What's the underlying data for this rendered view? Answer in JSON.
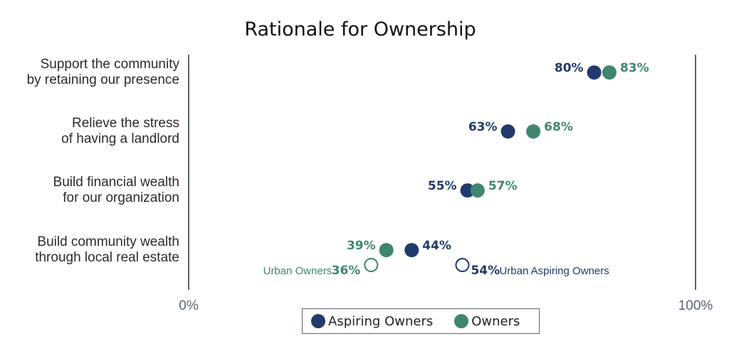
{
  "chart_data": {
    "type": "scatter",
    "title": "Rationale for Ownership",
    "xlim": [
      0,
      100
    ],
    "x_ticks": [
      "0%",
      "100%"
    ],
    "categories": [
      [
        "Support the community",
        "by retaining our presence"
      ],
      [
        "Relieve the stress",
        "of having a landlord"
      ],
      [
        "Build financial wealth",
        "for our organization"
      ],
      [
        "Build community wealth",
        "through local real estate"
      ]
    ],
    "series": [
      {
        "name": "Aspiring Owners",
        "color": "#213a6b",
        "values": [
          80,
          63,
          55,
          44
        ],
        "labels": [
          "80%",
          "63%",
          "55%",
          "44%"
        ]
      },
      {
        "name": "Owners",
        "color": "#3f8570",
        "values": [
          83,
          68,
          57,
          39
        ],
        "labels": [
          "83%",
          "68%",
          "57%",
          "39%"
        ]
      }
    ],
    "annotations": [
      {
        "category_index": 3,
        "name": "Urban Owners",
        "value": 36,
        "label": "36%",
        "color": "#3f8570",
        "style": "hollow"
      },
      {
        "category_index": 3,
        "name": "Urban Aspiring Owners",
        "value": 54,
        "label": "54%",
        "color": "#213a6b",
        "style": "hollow"
      }
    ],
    "legend": {
      "position": "bottom-center",
      "items": [
        "Aspiring Owners",
        "Owners"
      ]
    },
    "grid": false
  }
}
